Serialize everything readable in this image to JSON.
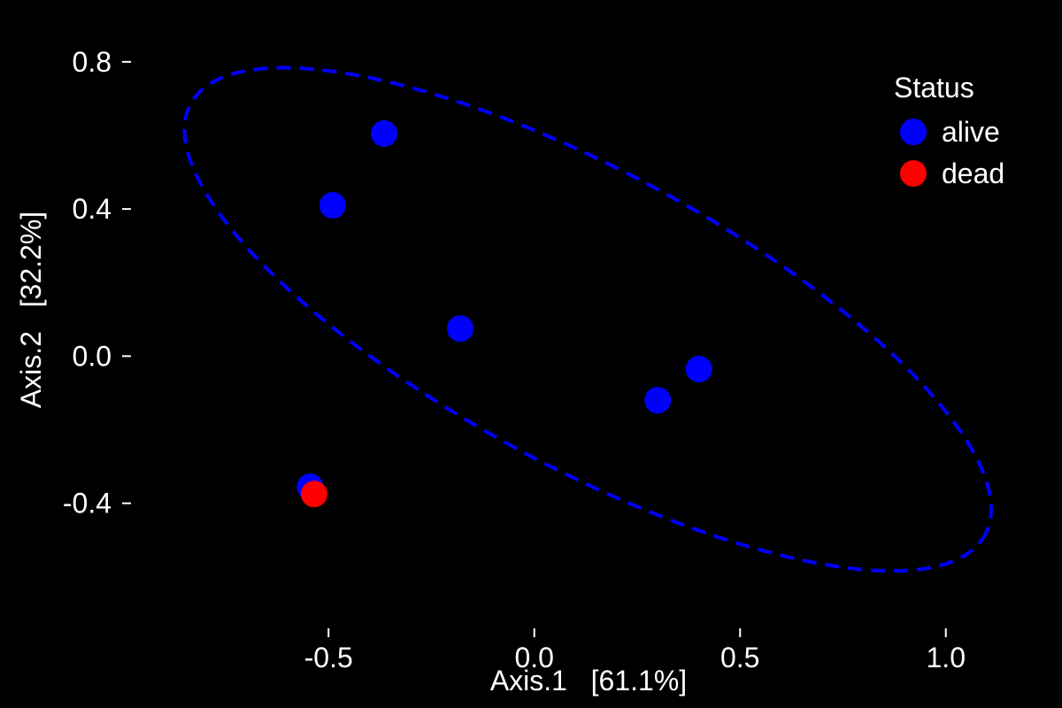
{
  "chart_data": {
    "type": "scatter",
    "title": "",
    "xlabel": "Axis.1   [61.1%]",
    "ylabel": "Axis.2   [32.2%]",
    "xlim": [
      -0.98,
      1.25
    ],
    "ylim": [
      -0.74,
      0.92
    ],
    "xticks": [
      -0.5,
      0.0,
      0.5,
      1.0
    ],
    "xtick_labels": [
      "-0.5",
      "0.0",
      "0.5",
      "1.0"
    ],
    "yticks": [
      -0.4,
      0.0,
      0.4,
      0.8
    ],
    "ytick_labels": [
      "-0.4",
      "0.0",
      "0.4",
      "0.8"
    ],
    "grid": false,
    "background": "#000000",
    "legend": {
      "title": "Status",
      "placement": "top-right",
      "entries": [
        {
          "label": "alive",
          "color": "#0000ff"
        },
        {
          "label": "dead",
          "color": "#ff0000"
        }
      ]
    },
    "series": [
      {
        "name": "alive",
        "color": "#0000ff",
        "points": [
          {
            "x": -0.365,
            "y": 0.605
          },
          {
            "x": -0.49,
            "y": 0.41
          },
          {
            "x": -0.18,
            "y": 0.075
          },
          {
            "x": 0.4,
            "y": -0.035
          },
          {
            "x": 0.3,
            "y": -0.12
          },
          {
            "x": -0.545,
            "y": -0.355
          }
        ]
      },
      {
        "name": "dead",
        "color": "#ff0000",
        "points": [
          {
            "x": -0.535,
            "y": -0.375
          }
        ]
      }
    ],
    "ellipse": {
      "series": "alive",
      "style": "dashed",
      "color": "#0000ff",
      "center": {
        "x": 0.13,
        "y": 0.1
      },
      "semi_major": 1.13,
      "semi_minor": 0.39,
      "angle_deg": -32
    }
  }
}
